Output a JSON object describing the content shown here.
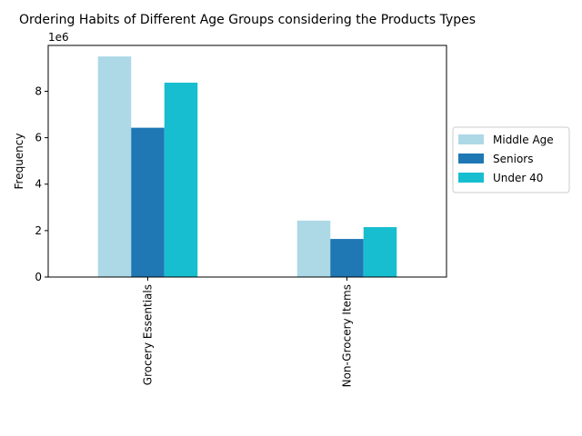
{
  "chart_data": {
    "type": "bar",
    "title": "Ordering Habits of Different Age Groups considering the Products Types",
    "xlabel": "",
    "ylabel": "Frequency",
    "y_offset_label": "1e6",
    "categories": [
      "Grocery Essentials",
      "Non-Grocery Items"
    ],
    "series": [
      {
        "name": "Middle Age",
        "values": [
          9500000,
          2430000
        ],
        "color": "#add8e6"
      },
      {
        "name": "Seniors",
        "values": [
          6430000,
          1640000
        ],
        "color": "#1f77b4"
      },
      {
        "name": "Under 40",
        "values": [
          8370000,
          2150000
        ],
        "color": "#17becf"
      }
    ],
    "yticks": [
      0,
      2,
      4,
      6,
      8
    ],
    "ytick_labels": [
      "0",
      "2",
      "4",
      "6",
      "8"
    ],
    "ylim": [
      0,
      9975000
    ],
    "grid": false,
    "legend_position": "center-right"
  }
}
